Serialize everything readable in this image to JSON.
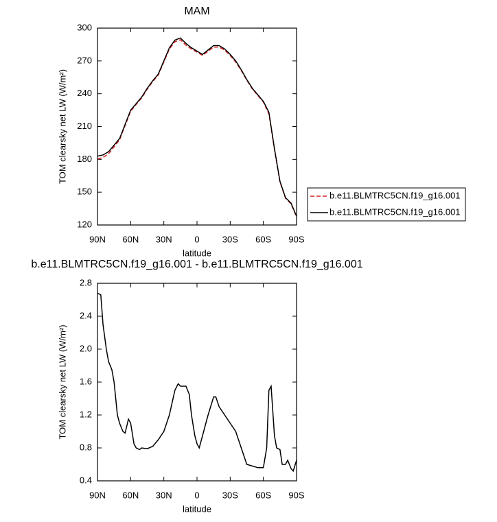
{
  "chart_data": [
    {
      "type": "line",
      "title": "MAM",
      "x_label": "latitude",
      "y_label": "TOM clearsky net LW (W/m²)",
      "x": [
        90,
        85,
        80,
        75,
        70,
        65,
        60,
        55,
        50,
        45,
        40,
        35,
        30,
        25,
        20,
        15,
        10,
        5,
        0,
        -5,
        -10,
        -15,
        -20,
        -25,
        -30,
        -35,
        -40,
        -45,
        -50,
        -55,
        -60,
        -65,
        -70,
        -75,
        -80,
        -85,
        -90
      ],
      "series": [
        {
          "name": "b.e11.BLMTRC5CN.f19_g16.001",
          "color": "#d62020",
          "line_style": "dashed",
          "values": [
            180.3,
            181.7,
            185.1,
            191.4,
            197.9,
            211.0,
            223.9,
            230.2,
            236.2,
            244.2,
            251.2,
            257.1,
            269.0,
            280.8,
            287.5,
            289.4,
            284.4,
            280.8,
            278.1,
            275.0,
            278.8,
            282.6,
            282.7,
            279.8,
            274.9,
            269.0,
            261.2,
            252.4,
            244.4,
            238.4,
            232.4,
            221.5,
            189.0,
            159.2,
            144.4,
            139.4,
            127.3
          ]
        },
        {
          "name": "b.e11.BLMTRC5CN.f19_g16.001",
          "color": "#000000",
          "line_style": "solid",
          "values": [
            183,
            184,
            187,
            193,
            199,
            212,
            225,
            231,
            237,
            245,
            252,
            258,
            270,
            282,
            289,
            291,
            286,
            282,
            279,
            276,
            280,
            284,
            284,
            281,
            276,
            270,
            262,
            253,
            245,
            239,
            233,
            223,
            190,
            160,
            145,
            140,
            128
          ]
        }
      ],
      "xlim": [
        90,
        -90
      ],
      "xticks": [
        {
          "value": 90,
          "label": "90N"
        },
        {
          "value": 60,
          "label": "60N"
        },
        {
          "value": 30,
          "label": "30N"
        },
        0,
        {
          "value": -30,
          "label": "30S"
        },
        {
          "value": -60,
          "label": "60S"
        },
        {
          "value": -90,
          "label": "90S"
        }
      ],
      "ylim": [
        120,
        300
      ],
      "yticks": [
        120,
        150,
        180,
        210,
        240,
        270,
        300
      ],
      "legend": "right"
    },
    {
      "type": "line",
      "title": "b.e11.BLMTRC5CN.f19_g16.001 - b.e11.BLMTRC5CN.f19_g16.001",
      "x_label": "latitude",
      "y_label": "TOM clearsky net LW (W/m²)",
      "x": [
        90,
        87,
        85,
        82,
        80,
        77,
        75,
        72,
        70,
        67,
        65,
        62,
        60,
        57,
        55,
        52,
        50,
        45,
        40,
        35,
        30,
        25,
        20,
        17,
        15,
        10,
        7,
        5,
        2,
        0,
        -2,
        -5,
        -10,
        -15,
        -17,
        -20,
        -25,
        -30,
        -35,
        -40,
        -45,
        -50,
        -55,
        -60,
        -63,
        -65,
        -67,
        -70,
        -72,
        -75,
        -77,
        -80,
        -82,
        -85,
        -87,
        -90
      ],
      "values": [
        2.68,
        2.66,
        2.3,
        2.0,
        1.85,
        1.75,
        1.6,
        1.2,
        1.1,
        1.0,
        0.98,
        1.15,
        1.1,
        0.85,
        0.8,
        0.78,
        0.8,
        0.79,
        0.82,
        0.9,
        1.0,
        1.2,
        1.5,
        1.58,
        1.55,
        1.55,
        1.45,
        1.2,
        0.95,
        0.85,
        0.8,
        0.95,
        1.2,
        1.42,
        1.42,
        1.3,
        1.2,
        1.1,
        1.0,
        0.8,
        0.6,
        0.58,
        0.56,
        0.56,
        0.8,
        1.5,
        1.55,
        0.95,
        0.8,
        0.78,
        0.6,
        0.6,
        0.65,
        0.55,
        0.52,
        0.65
      ],
      "color": "#000000",
      "line_style": "solid",
      "xlim": [
        90,
        -90
      ],
      "xticks": [
        {
          "value": 90,
          "label": "90N"
        },
        {
          "value": 60,
          "label": "60N"
        },
        {
          "value": 30,
          "label": "30N"
        },
        0,
        {
          "value": -30,
          "label": "30S"
        },
        {
          "value": -60,
          "label": "60S"
        },
        {
          "value": -90,
          "label": "90S"
        }
      ],
      "ylim": [
        0.4,
        2.8
      ],
      "yticks": [
        0.4,
        0.8,
        1.2,
        1.6,
        {
          "value": 2,
          "label": "2.0"
        },
        2.4,
        2.8
      ]
    }
  ]
}
